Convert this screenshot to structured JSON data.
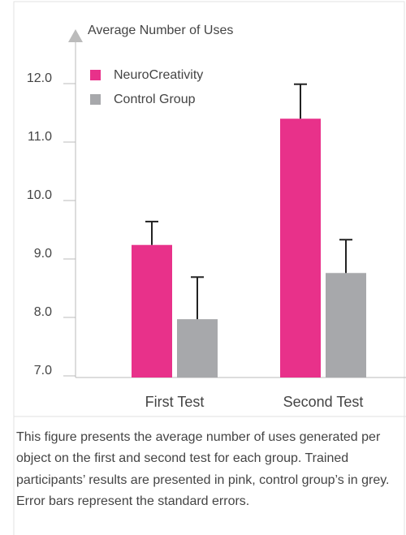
{
  "chart_data": {
    "type": "bar",
    "title": "Average Number of Uses",
    "categories": [
      "First Test",
      "Second Test"
    ],
    "series": [
      {
        "name": "NeuroCreativity",
        "color": "#e8318a",
        "values": [
          9.24,
          11.4
        ],
        "errors": [
          0.4,
          0.59
        ]
      },
      {
        "name": "Control Group",
        "color": "#a7a8ab",
        "values": [
          7.97,
          8.76
        ],
        "errors": [
          0.72,
          0.57
        ]
      }
    ],
    "ylim": [
      7,
      12.8
    ],
    "yticks": [
      {
        "value": 7,
        "label": "7.0"
      },
      {
        "value": 8,
        "label": "8.0"
      },
      {
        "value": 9,
        "label": "9.0"
      },
      {
        "value": 10,
        "label": "10.0"
      },
      {
        "value": 11,
        "label": "11.0"
      },
      {
        "value": 12,
        "label": "12.0"
      }
    ],
    "caption": "This figure presents the average number of uses generated per object on the first and second test for each group. Trained participants’ results are presented in pink, control group’s in grey. Error bars represent the standard errors."
  }
}
